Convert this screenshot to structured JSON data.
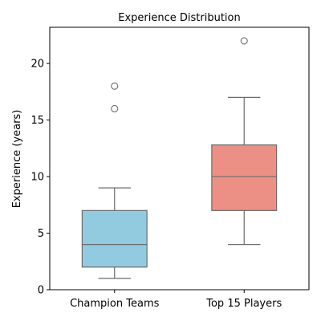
{
  "chart_data": {
    "type": "box",
    "title": "Experience Distribution",
    "ylabel": "Experience (years)",
    "xlabel": "",
    "ylim": [
      0,
      23.2
    ],
    "yticks": [
      0,
      5,
      10,
      15,
      20
    ],
    "grid": false,
    "colors": {
      "frame": "#000000",
      "edge": "#6b6b6b"
    },
    "categories": [
      "Champion Teams",
      "Top 15 Players"
    ],
    "boxes": [
      {
        "name": "Champion Teams",
        "color": "#92cbe0",
        "whisker_low": 1,
        "q1": 2,
        "median": 4,
        "q3": 7,
        "whisker_high": 9,
        "outliers": [
          16,
          18
        ]
      },
      {
        "name": "Top 15 Players",
        "color": "#ec9085",
        "whisker_low": 4,
        "q1": 7,
        "median": 10,
        "q3": 12.8,
        "whisker_high": 17,
        "outliers": [
          22
        ]
      }
    ]
  }
}
